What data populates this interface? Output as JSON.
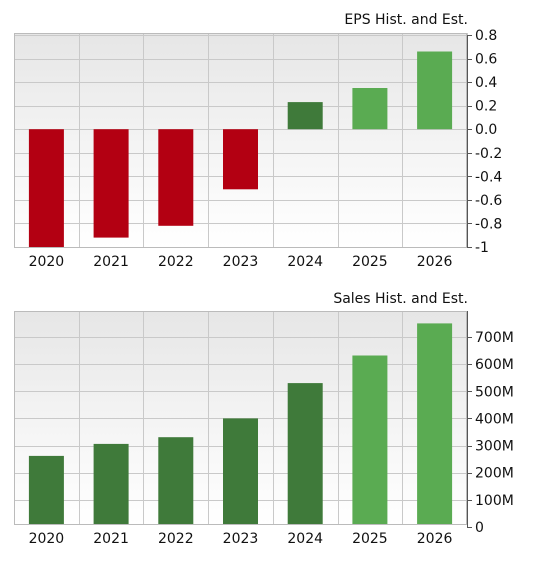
{
  "chart_data": [
    {
      "type": "bar",
      "title": "EPS Hist. and Est.",
      "categories": [
        "2020",
        "2021",
        "2022",
        "2023",
        "2024",
        "2025",
        "2026"
      ],
      "values": [
        -1.02,
        -0.92,
        -0.82,
        -0.51,
        0.23,
        0.35,
        0.66
      ],
      "ylim": [
        -1.0,
        0.8
      ],
      "yticks": [
        "0.8",
        "0.6",
        "0.4",
        "0.2",
        "0.0",
        "-0.2",
        "-0.4",
        "-0.6",
        "-0.8",
        "-1"
      ],
      "ytick_values": [
        0.8,
        0.6,
        0.4,
        0.2,
        0.0,
        -0.2,
        -0.4,
        -0.6,
        -0.8,
        -1.0
      ],
      "bar_colors": [
        "#b30012",
        "#b30012",
        "#b30012",
        "#b30012",
        "#3f7a3a",
        "#5aab52",
        "#5aab52"
      ],
      "grid": true,
      "ytick_position": "right"
    },
    {
      "type": "bar",
      "title": "Sales Hist. and Est.",
      "categories": [
        "2020",
        "2021",
        "2022",
        "2023",
        "2024",
        "2025",
        "2026"
      ],
      "values": [
        262,
        306,
        331,
        400,
        530,
        632,
        750
      ],
      "ylim": [
        0,
        750
      ],
      "yticks": [
        "700M",
        "600M",
        "500M",
        "400M",
        "300M",
        "200M",
        "100M",
        "0"
      ],
      "ytick_values": [
        700,
        600,
        500,
        400,
        300,
        200,
        100,
        0
      ],
      "bar_colors": [
        "#3f7a3a",
        "#3f7a3a",
        "#3f7a3a",
        "#3f7a3a",
        "#3f7a3a",
        "#5aab52",
        "#5aab52"
      ],
      "grid": true,
      "ytick_position": "right"
    }
  ]
}
